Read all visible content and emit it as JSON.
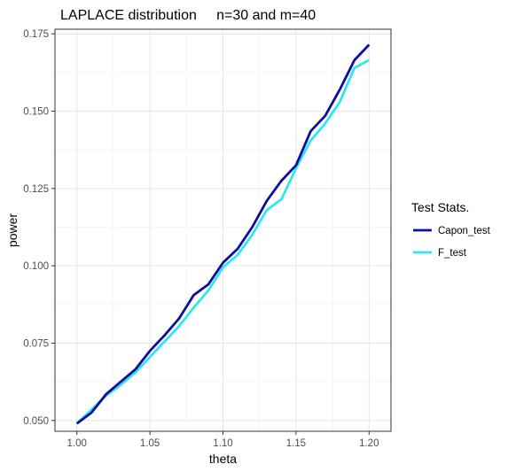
{
  "chart_data": {
    "type": "line",
    "title": "LAPLACE distribution     n=30 and m=40",
    "xlabel": "theta",
    "ylabel": "power",
    "xlim": [
      0.985,
      1.215
    ],
    "ylim": [
      0.0465,
      0.1765
    ],
    "x_ticks": [
      1.0,
      1.05,
      1.1,
      1.15,
      1.2
    ],
    "x_tick_labels": [
      "1.00",
      "1.05",
      "1.10",
      "1.15",
      "1.20"
    ],
    "y_ticks": [
      0.05,
      0.075,
      0.1,
      0.125,
      0.15,
      0.175
    ],
    "y_tick_labels": [
      "0.050",
      "0.075",
      "0.100",
      "0.125",
      "0.150",
      "0.175"
    ],
    "grid": true,
    "legend_title": "Test Stats.",
    "legend_position": "right",
    "x": [
      1.0,
      1.01,
      1.02,
      1.03,
      1.04,
      1.05,
      1.06,
      1.07,
      1.08,
      1.09,
      1.1,
      1.11,
      1.12,
      1.13,
      1.14,
      1.15,
      1.16,
      1.17,
      1.18,
      1.19,
      1.2
    ],
    "series": [
      {
        "name": "Capon_test",
        "color": "#0d0d9f",
        "values": [
          0.049,
          0.0525,
          0.0585,
          0.0625,
          0.0665,
          0.0725,
          0.0775,
          0.083,
          0.0905,
          0.094,
          0.101,
          0.1055,
          0.1125,
          0.121,
          0.1275,
          0.1325,
          0.1435,
          0.1485,
          0.157,
          0.1665,
          0.1715
        ]
      },
      {
        "name": "F_test",
        "color": "#2ee6f0",
        "values": [
          0.049,
          0.0535,
          0.058,
          0.0615,
          0.0655,
          0.0705,
          0.0755,
          0.0805,
          0.0865,
          0.092,
          0.0995,
          0.1035,
          0.11,
          0.118,
          0.1215,
          0.1315,
          0.1405,
          0.146,
          0.153,
          0.164,
          0.1665
        ]
      }
    ]
  }
}
